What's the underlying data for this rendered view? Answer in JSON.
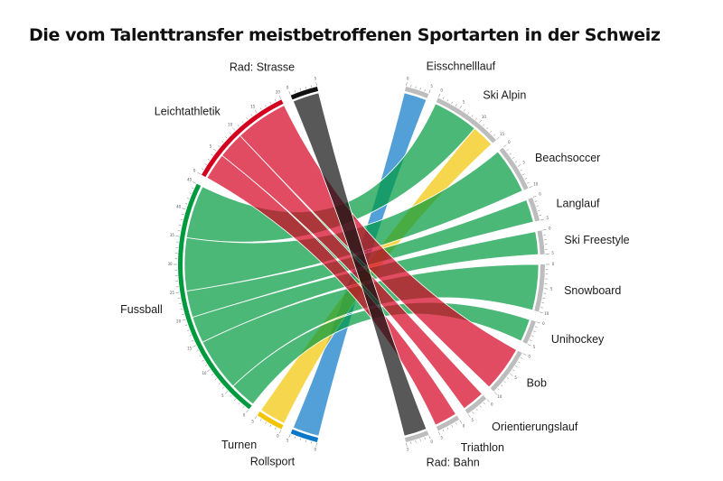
{
  "chart_data": {
    "type": "chord",
    "title": "Die vom Talenttransfer meistbetroffenen Sportarten in der Schweiz",
    "sources": [
      {
        "name": "Rad: Strasse",
        "color": "#111111"
      },
      {
        "name": "Leichtathletik",
        "color": "#d4001f"
      },
      {
        "name": "Fussball",
        "color": "#009a3e"
      },
      {
        "name": "Turnen",
        "color": "#f2c500"
      },
      {
        "name": "Rollsport",
        "color": "#0a78c8"
      }
    ],
    "targets": [
      {
        "name": "Eisschnelllauf",
        "color": "#bdbdbd"
      },
      {
        "name": "Ski Alpin",
        "color": "#bdbdbd"
      },
      {
        "name": "Beachsoccer",
        "color": "#bdbdbd"
      },
      {
        "name": "Langlauf",
        "color": "#bdbdbd"
      },
      {
        "name": "Ski Freestyle",
        "color": "#bdbdbd"
      },
      {
        "name": "Snowboard",
        "color": "#bdbdbd"
      },
      {
        "name": "Unihockey",
        "color": "#bdbdbd"
      },
      {
        "name": "Bob",
        "color": "#bdbdbd"
      },
      {
        "name": "Orientierungslauf",
        "color": "#bdbdbd"
      },
      {
        "name": "Triathlon",
        "color": "#bdbdbd"
      },
      {
        "name": "Rad: Bahn",
        "color": "#bdbdbd"
      }
    ],
    "flows": [
      {
        "source": "Rollsport",
        "target": "Eisschnelllauf",
        "value": 5
      },
      {
        "source": "Fussball",
        "target": "Ski Alpin",
        "value": 10
      },
      {
        "source": "Turnen",
        "target": "Ski Alpin",
        "value": 5
      },
      {
        "source": "Fussball",
        "target": "Beachsoccer",
        "value": 10
      },
      {
        "source": "Fussball",
        "target": "Langlauf",
        "value": 5
      },
      {
        "source": "Fussball",
        "target": "Ski Freestyle",
        "value": 5
      },
      {
        "source": "Fussball",
        "target": "Snowboard",
        "value": 10
      },
      {
        "source": "Fussball",
        "target": "Unihockey",
        "value": 5
      },
      {
        "source": "Leichtathletik",
        "target": "Bob",
        "value": 10
      },
      {
        "source": "Leichtathletik",
        "target": "Orientierungslauf",
        "value": 5
      },
      {
        "source": "Leichtathletik",
        "target": "Triathlon",
        "value": 5
      },
      {
        "source": "Rad: Strasse",
        "target": "Rad: Bahn",
        "value": 5
      }
    ]
  }
}
